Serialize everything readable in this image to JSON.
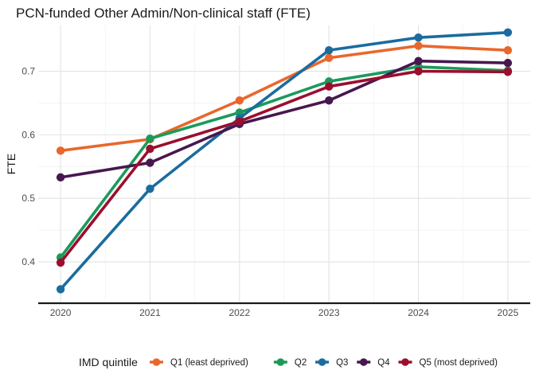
{
  "chart_data": {
    "type": "line",
    "title": "PCN-funded Other Admin/Non-clinical staff (FTE)",
    "xlabel": "",
    "ylabel": "FTE",
    "x": [
      2020,
      2021,
      2022,
      2023,
      2024,
      2025
    ],
    "x_tick_labels": [
      "2020",
      "2021",
      "2022",
      "2023",
      "2024",
      "2025"
    ],
    "y_ticks": [
      0.4,
      0.5,
      0.6,
      0.7
    ],
    "y_tick_labels": [
      "0.4",
      "0.5",
      "0.6",
      "0.7"
    ],
    "ylim": [
      0.335,
      0.772
    ],
    "xlim": [
      2019.75,
      2025.25
    ],
    "grid": true,
    "legend": {
      "title": "IMD quintile",
      "position": "bottom"
    },
    "series": [
      {
        "name": "Q1 (least deprived)",
        "color": "#E8682C",
        "values": [
          0.575,
          0.593,
          0.654,
          0.721,
          0.74,
          0.733
        ]
      },
      {
        "name": "Q2",
        "color": "#1B9A5A",
        "values": [
          0.407,
          0.594,
          0.635,
          0.684,
          0.707,
          0.701
        ]
      },
      {
        "name": "Q3",
        "color": "#1A6C9E",
        "values": [
          0.357,
          0.515,
          0.626,
          0.733,
          0.753,
          0.761
        ]
      },
      {
        "name": "Q4",
        "color": "#47174F",
        "values": [
          0.533,
          0.556,
          0.617,
          0.654,
          0.716,
          0.713
        ]
      },
      {
        "name": "Q5 (most deprived)",
        "color": "#9B0E2E",
        "values": [
          0.399,
          0.578,
          0.621,
          0.676,
          0.7,
          0.699
        ]
      }
    ]
  }
}
